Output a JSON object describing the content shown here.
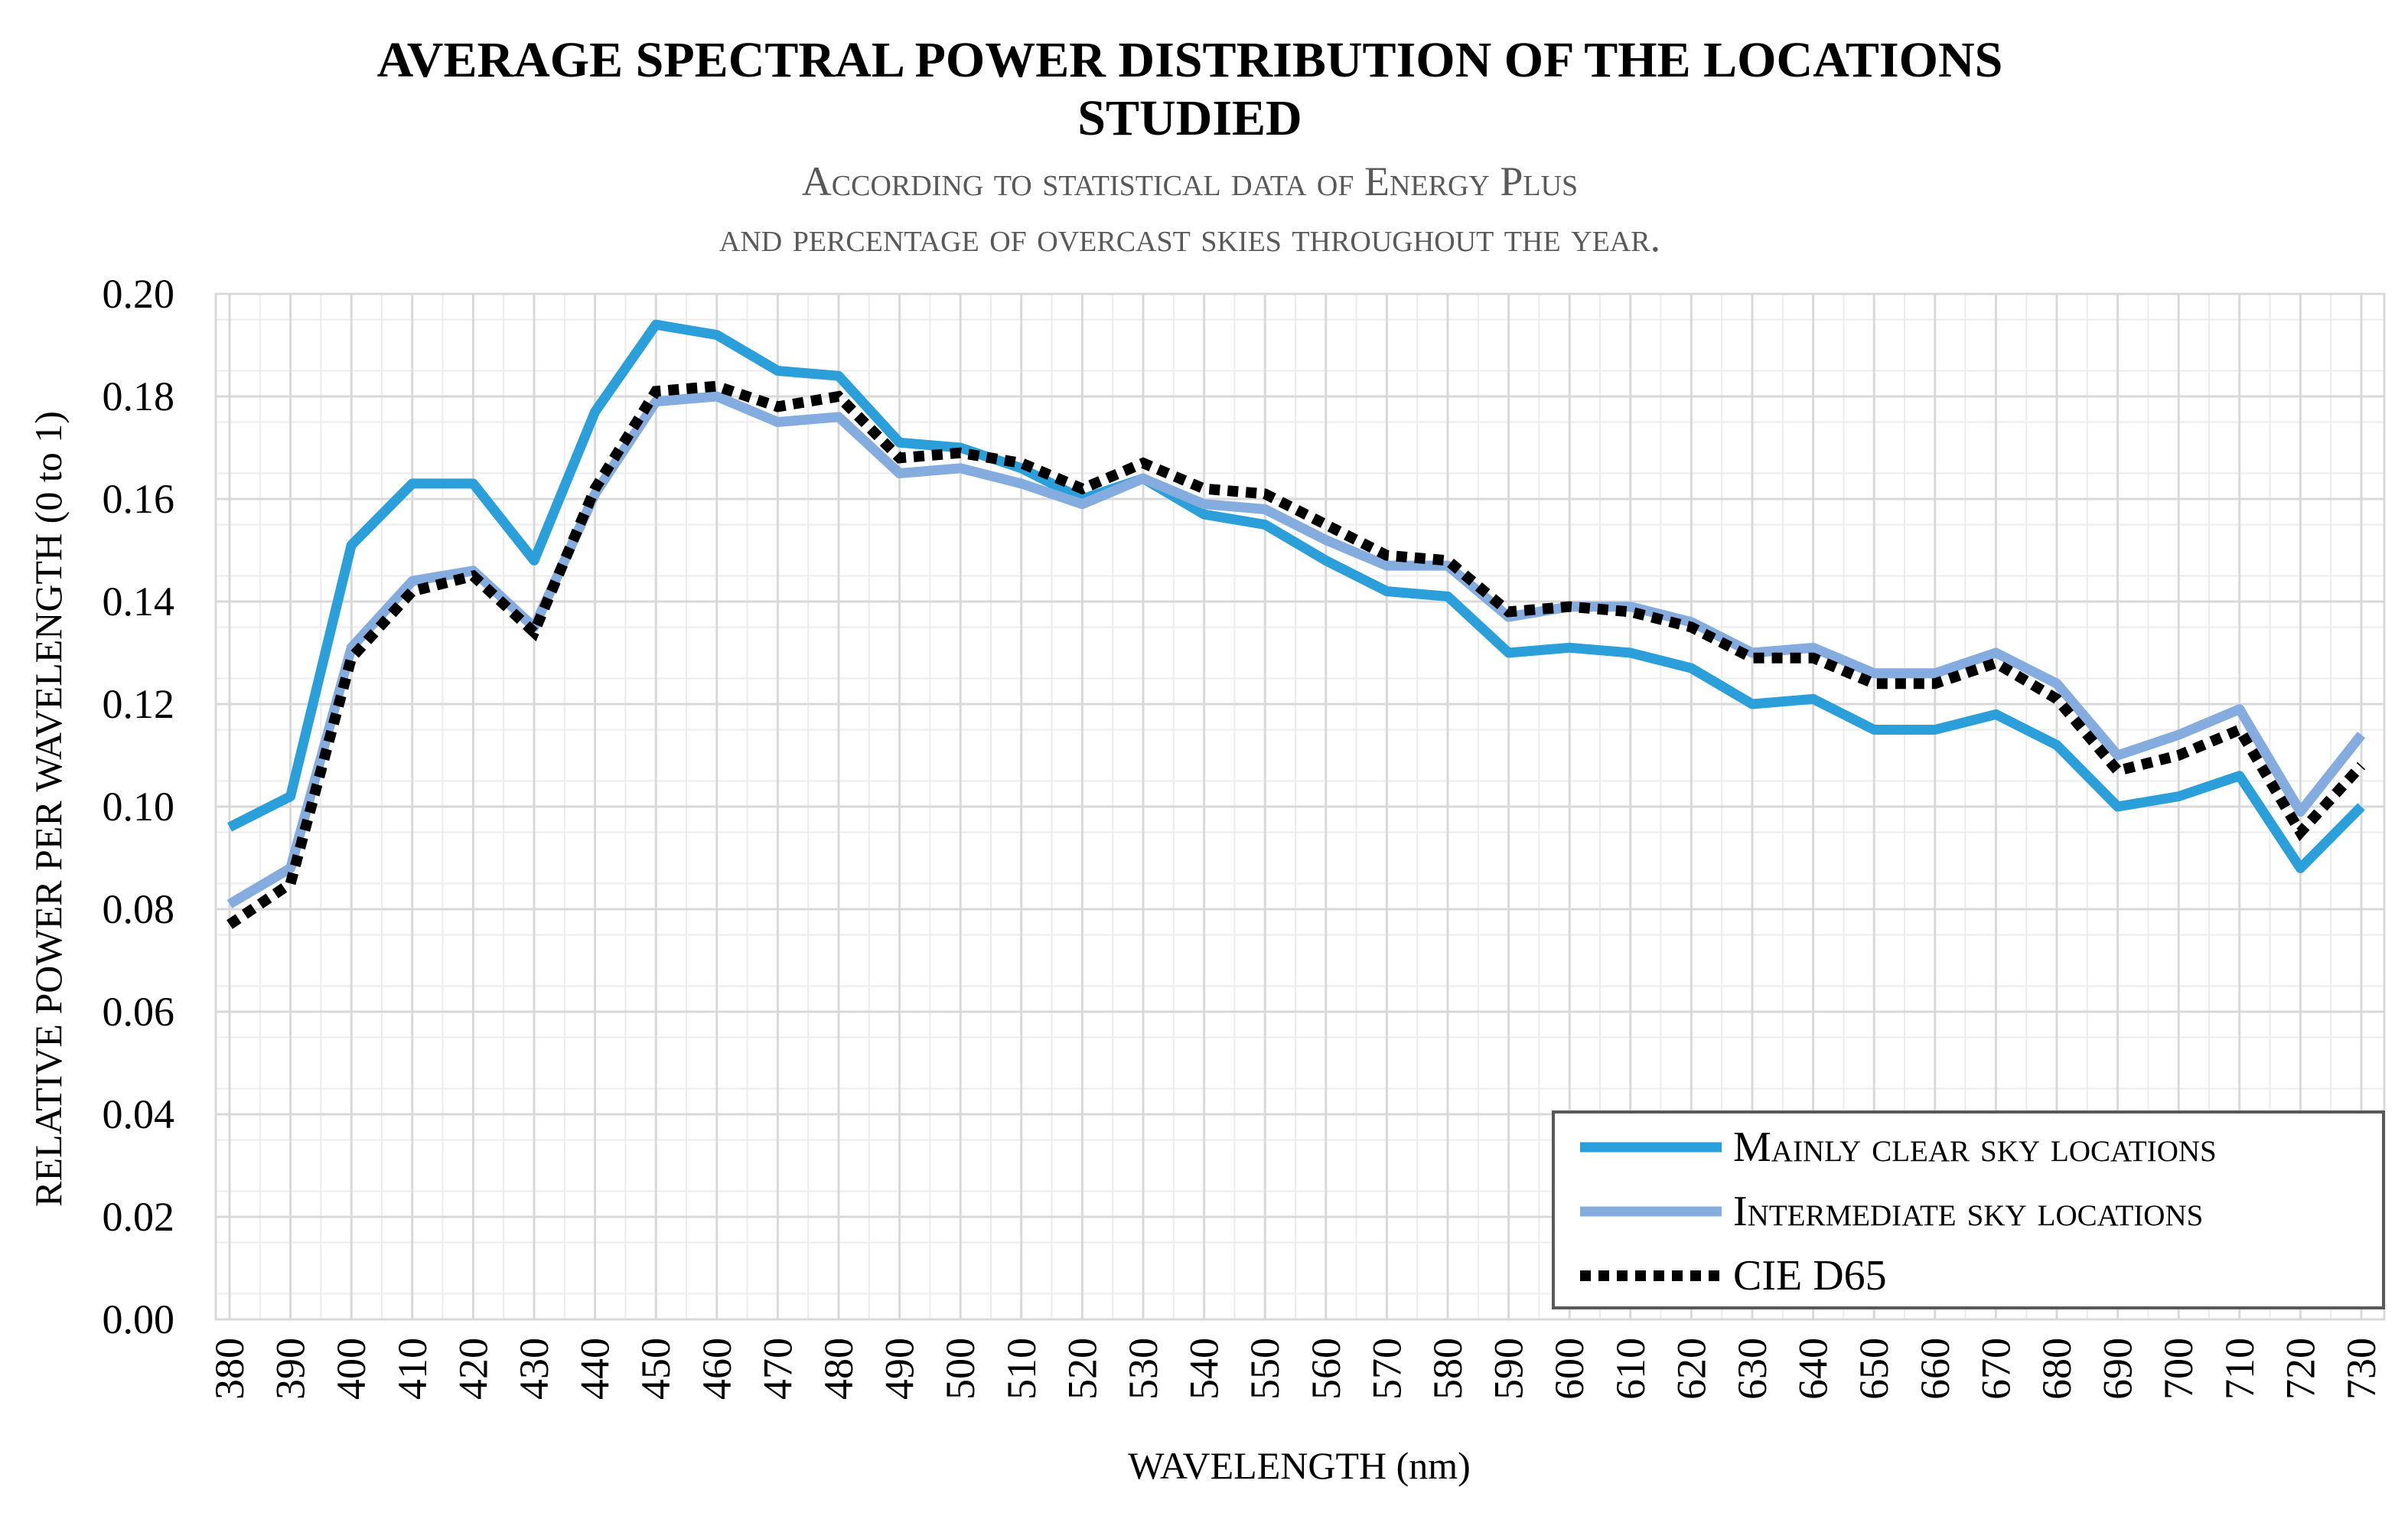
{
  "chart_data": {
    "type": "line",
    "title": "AVERAGE SPECTRAL POWER DISTRIBUTION OF THE LOCATIONS STUDIED",
    "title_lines": [
      "AVERAGE SPECTRAL POWER DISTRIBUTION OF THE LOCATIONS",
      "STUDIED"
    ],
    "subtitle_lines": [
      "According to statistical data of Energy Plus",
      "and percentage of overcast skies throughout the year."
    ],
    "xlabel": "WAVELENGTH (nm)",
    "ylabel": "RELATIVE POWER PER WAVELENGTH (0 to 1)",
    "ylim": [
      0,
      0.2
    ],
    "yticks": [
      "0.00",
      "0.02",
      "0.04",
      "0.06",
      "0.08",
      "0.10",
      "0.12",
      "0.14",
      "0.16",
      "0.18",
      "0.20"
    ],
    "x": [
      380,
      390,
      400,
      410,
      420,
      430,
      440,
      450,
      460,
      470,
      480,
      490,
      500,
      510,
      520,
      530,
      540,
      550,
      560,
      570,
      580,
      590,
      600,
      610,
      620,
      630,
      640,
      650,
      660,
      670,
      680,
      690,
      700,
      710,
      720,
      730
    ],
    "grid": true,
    "legend_position": "bottom-right",
    "series": [
      {
        "name": "Mainly clear sky locations",
        "color": "#2b9fd9",
        "style": "solid",
        "values": [
          0.096,
          0.102,
          0.151,
          0.163,
          0.163,
          0.148,
          0.177,
          0.194,
          0.192,
          0.185,
          0.184,
          0.171,
          0.17,
          0.166,
          0.16,
          0.164,
          0.157,
          0.155,
          0.148,
          0.142,
          0.141,
          0.13,
          0.131,
          0.13,
          0.127,
          0.12,
          0.121,
          0.115,
          0.115,
          0.118,
          0.112,
          0.1,
          0.102,
          0.106,
          0.088,
          0.1
        ]
      },
      {
        "name": "Intermediate sky locations",
        "color": "#84acdf",
        "style": "solid",
        "values": [
          0.081,
          0.088,
          0.131,
          0.144,
          0.146,
          0.135,
          0.161,
          0.179,
          0.18,
          0.175,
          0.176,
          0.165,
          0.166,
          0.163,
          0.159,
          0.164,
          0.159,
          0.158,
          0.152,
          0.147,
          0.147,
          0.137,
          0.139,
          0.139,
          0.136,
          0.13,
          0.131,
          0.126,
          0.126,
          0.13,
          0.124,
          0.11,
          0.114,
          0.119,
          0.099,
          0.114
        ]
      },
      {
        "name": "CIE D65",
        "color": "#000000",
        "style": "dotted",
        "values": [
          0.077,
          0.085,
          0.129,
          0.142,
          0.145,
          0.134,
          0.162,
          0.181,
          0.182,
          0.178,
          0.18,
          0.168,
          0.169,
          0.167,
          0.162,
          0.167,
          0.162,
          0.161,
          0.155,
          0.149,
          0.148,
          0.138,
          0.139,
          0.138,
          0.135,
          0.129,
          0.129,
          0.124,
          0.124,
          0.128,
          0.121,
          0.107,
          0.11,
          0.115,
          0.095,
          0.108
        ]
      }
    ]
  }
}
